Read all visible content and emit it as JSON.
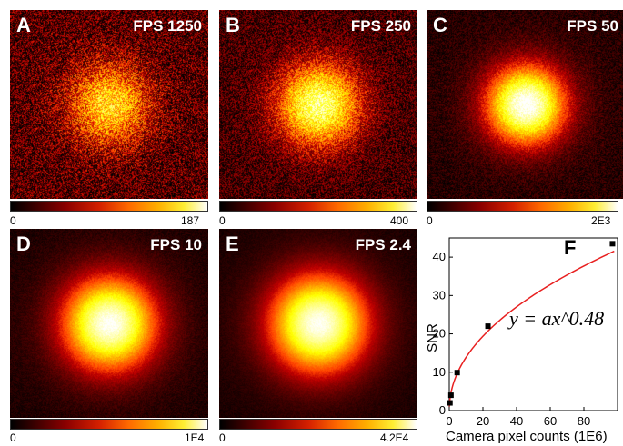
{
  "panels": [
    {
      "label": "A",
      "fps": "FPS 1250",
      "cmin": "0",
      "cmax": "187",
      "peak": 0.55,
      "radius": 0.17,
      "noise": 1.0
    },
    {
      "label": "B",
      "fps": "FPS 250",
      "cmin": "0",
      "cmax": "400",
      "peak": 0.75,
      "radius": 0.17,
      "noise": 0.75
    },
    {
      "label": "C",
      "fps": "FPS 50",
      "cmin": "0",
      "cmax": "2E3",
      "peak": 1.0,
      "radius": 0.16,
      "noise": 0.35
    },
    {
      "label": "D",
      "fps": "FPS 10",
      "cmin": "0",
      "cmax": "1E4",
      "peak": 1.0,
      "radius": 0.19,
      "noise": 0.18
    },
    {
      "label": "E",
      "fps": "FPS 2.4",
      "cmin": "0",
      "cmax": "4.2E4",
      "peak": 1.0,
      "radius": 0.2,
      "noise": 0.12
    }
  ],
  "chart_data": {
    "type": "scatter",
    "panel_label": "F",
    "xlabel": "Camera pixel counts (1E6)",
    "ylabel": "SNR",
    "equation": "y = ax^0.48",
    "xlim": [
      0,
      100
    ],
    "ylim": [
      0,
      45
    ],
    "xticks": [
      0,
      20,
      40,
      60,
      80
    ],
    "yticks": [
      0,
      10,
      20,
      30,
      40
    ],
    "points": [
      {
        "x": 0.4,
        "y": 2
      },
      {
        "x": 1.0,
        "y": 4
      },
      {
        "x": 4.7,
        "y": 9.9
      },
      {
        "x": 23,
        "y": 22
      },
      {
        "x": 97,
        "y": 43.5
      }
    ],
    "fit": {
      "a": 4.6,
      "b": 0.48,
      "color": "#e82020"
    }
  }
}
